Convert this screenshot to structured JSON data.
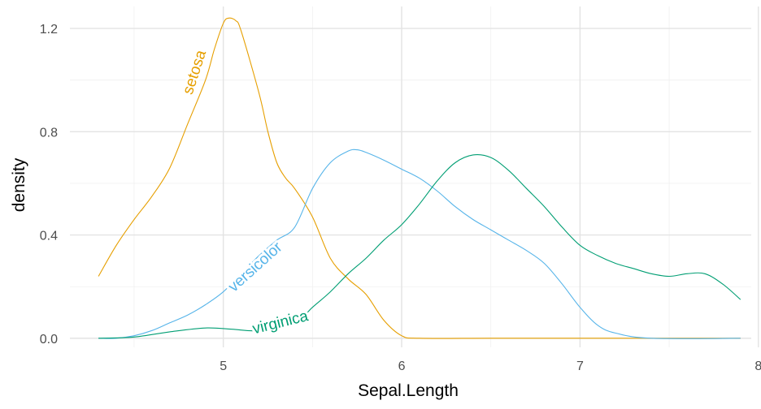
{
  "chart_data": {
    "type": "line",
    "title": "",
    "xlabel": "Sepal.Length",
    "ylabel": "density",
    "xlim": [
      4.14,
      7.96
    ],
    "ylim": [
      -0.035,
      1.285
    ],
    "x_ticks": [
      5,
      6,
      7,
      8
    ],
    "x_tick_labels": [
      "5",
      "6",
      "7",
      "8"
    ],
    "y_ticks": [
      0.0,
      0.4,
      0.8,
      1.2
    ],
    "y_tick_labels": [
      "0.0",
      "0.4",
      "0.8",
      "1.2"
    ],
    "grid": true,
    "legend": "direct labels on curves",
    "series": [
      {
        "name": "setosa",
        "color": "#E69F00",
        "points": [
          [
            4.3,
            0.24
          ],
          [
            4.4,
            0.36
          ],
          [
            4.5,
            0.46
          ],
          [
            4.6,
            0.55
          ],
          [
            4.7,
            0.66
          ],
          [
            4.8,
            0.83
          ],
          [
            4.9,
            1.0
          ],
          [
            4.95,
            1.12
          ],
          [
            5.0,
            1.22
          ],
          [
            5.03,
            1.24
          ],
          [
            5.07,
            1.23
          ],
          [
            5.1,
            1.19
          ],
          [
            5.2,
            0.95
          ],
          [
            5.25,
            0.8
          ],
          [
            5.3,
            0.68
          ],
          [
            5.35,
            0.62
          ],
          [
            5.4,
            0.58
          ],
          [
            5.5,
            0.47
          ],
          [
            5.6,
            0.31
          ],
          [
            5.7,
            0.23
          ],
          [
            5.8,
            0.17
          ],
          [
            5.9,
            0.07
          ],
          [
            6.0,
            0.01
          ],
          [
            6.1,
            0.0
          ],
          [
            6.5,
            0.0
          ],
          [
            7.0,
            0.0
          ],
          [
            7.5,
            0.0
          ],
          [
            7.9,
            0.0
          ]
        ],
        "label": {
          "text": "setosa",
          "x": 4.84,
          "y": 1.03,
          "angle": -72
        }
      },
      {
        "name": "versicolor",
        "color": "#56B4E9",
        "points": [
          [
            4.3,
            0.0
          ],
          [
            4.4,
            0.0
          ],
          [
            4.5,
            0.01
          ],
          [
            4.6,
            0.03
          ],
          [
            4.7,
            0.06
          ],
          [
            4.8,
            0.09
          ],
          [
            4.9,
            0.13
          ],
          [
            5.0,
            0.18
          ],
          [
            5.1,
            0.25
          ],
          [
            5.2,
            0.32
          ],
          [
            5.3,
            0.38
          ],
          [
            5.4,
            0.43
          ],
          [
            5.5,
            0.58
          ],
          [
            5.6,
            0.68
          ],
          [
            5.7,
            0.725
          ],
          [
            5.75,
            0.73
          ],
          [
            5.8,
            0.72
          ],
          [
            5.9,
            0.69
          ],
          [
            6.0,
            0.655
          ],
          [
            6.1,
            0.62
          ],
          [
            6.2,
            0.57
          ],
          [
            6.3,
            0.51
          ],
          [
            6.4,
            0.46
          ],
          [
            6.5,
            0.42
          ],
          [
            6.6,
            0.38
          ],
          [
            6.7,
            0.34
          ],
          [
            6.8,
            0.29
          ],
          [
            6.9,
            0.21
          ],
          [
            7.0,
            0.12
          ],
          [
            7.1,
            0.05
          ],
          [
            7.2,
            0.02
          ],
          [
            7.4,
            0.0
          ],
          [
            7.9,
            0.0
          ]
        ],
        "label": {
          "text": "versicolor",
          "x": 5.18,
          "y": 0.275,
          "angle": -42
        }
      },
      {
        "name": "virginica",
        "color": "#009E73",
        "points": [
          [
            4.3,
            0.0
          ],
          [
            4.5,
            0.005
          ],
          [
            4.7,
            0.025
          ],
          [
            4.9,
            0.04
          ],
          [
            5.05,
            0.035
          ],
          [
            5.2,
            0.03
          ],
          [
            5.4,
            0.06
          ],
          [
            5.5,
            0.12
          ],
          [
            5.6,
            0.18
          ],
          [
            5.7,
            0.25
          ],
          [
            5.8,
            0.31
          ],
          [
            5.9,
            0.38
          ],
          [
            6.0,
            0.44
          ],
          [
            6.1,
            0.52
          ],
          [
            6.2,
            0.61
          ],
          [
            6.3,
            0.68
          ],
          [
            6.4,
            0.71
          ],
          [
            6.5,
            0.7
          ],
          [
            6.6,
            0.65
          ],
          [
            6.7,
            0.58
          ],
          [
            6.8,
            0.51
          ],
          [
            6.9,
            0.43
          ],
          [
            7.0,
            0.36
          ],
          [
            7.1,
            0.32
          ],
          [
            7.2,
            0.29
          ],
          [
            7.3,
            0.27
          ],
          [
            7.4,
            0.25
          ],
          [
            7.5,
            0.24
          ],
          [
            7.6,
            0.25
          ],
          [
            7.7,
            0.25
          ],
          [
            7.8,
            0.21
          ],
          [
            7.9,
            0.15
          ]
        ],
        "label": {
          "text": "virginica",
          "x": 5.32,
          "y": 0.06,
          "angle": -14
        }
      }
    ]
  }
}
